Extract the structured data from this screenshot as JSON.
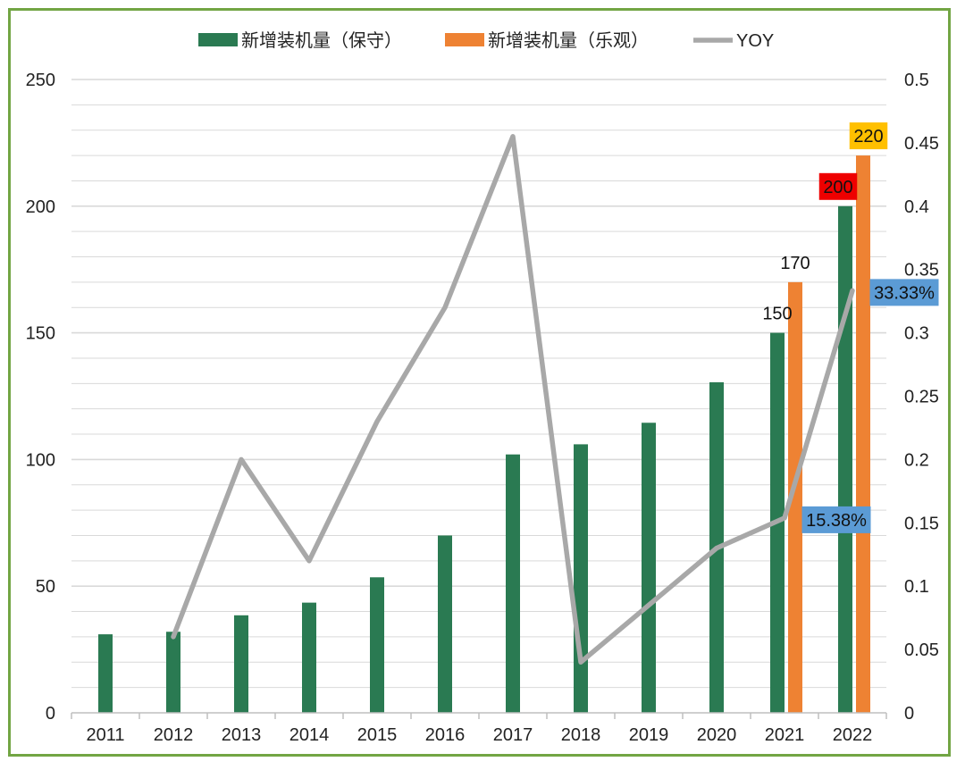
{
  "colors": {
    "frame": "#72a544",
    "series_conservative": "#2a7a52",
    "series_optimistic": "#ee8233",
    "series_yoy": "#a8a8a8",
    "gridline": "#d9d9d9",
    "label_red_bg": "#ee0000",
    "label_yellow_bg": "#ffc000",
    "label_blue_bg": "#5b9bd5"
  },
  "chart_data": {
    "type": "bar",
    "categories": [
      "2011",
      "2012",
      "2013",
      "2014",
      "2015",
      "2016",
      "2017",
      "2018",
      "2019",
      "2020",
      "2021",
      "2022"
    ],
    "series": [
      {
        "name": "新增装机量（保守）",
        "kind": "bar",
        "axis": "left",
        "values": [
          31,
          32,
          38.5,
          43.5,
          53.5,
          70,
          102,
          106,
          114.5,
          130.5,
          150,
          200
        ]
      },
      {
        "name": "新增装机量（乐观）",
        "kind": "bar",
        "axis": "left",
        "values": [
          null,
          null,
          null,
          null,
          null,
          null,
          null,
          null,
          null,
          null,
          170,
          220
        ]
      },
      {
        "name": "YOY",
        "kind": "line",
        "axis": "right",
        "values": [
          null,
          0.06,
          0.2,
          0.12,
          0.23,
          0.32,
          0.455,
          0.04,
          0.085,
          0.13,
          0.1538,
          0.3333
        ]
      }
    ],
    "left_axis": {
      "min": 0,
      "max": 250,
      "ticks": [
        "0",
        "50",
        "100",
        "150",
        "200",
        "250"
      ]
    },
    "right_axis": {
      "min": 0,
      "max": 0.5,
      "ticks": [
        "0",
        "0.05",
        "0.1",
        "0.15",
        "0.2",
        "0.25",
        "0.3",
        "0.35",
        "0.4",
        "0.45",
        "0.5"
      ]
    },
    "data_labels": [
      {
        "text": "150",
        "series": 0,
        "index": 10,
        "style": "plain"
      },
      {
        "text": "170",
        "series": 1,
        "index": 10,
        "style": "plain"
      },
      {
        "text": "200",
        "series": 0,
        "index": 11,
        "style": "red"
      },
      {
        "text": "220",
        "series": 1,
        "index": 11,
        "style": "yellow"
      },
      {
        "text": "15.38%",
        "series": 2,
        "index": 10,
        "style": "blue"
      },
      {
        "text": "33.33%",
        "series": 2,
        "index": 11,
        "style": "blue"
      }
    ],
    "legend": [
      "新增装机量（保守）",
      "新增装机量（乐观）",
      "YOY"
    ],
    "legend_position": "top",
    "grid": true
  }
}
